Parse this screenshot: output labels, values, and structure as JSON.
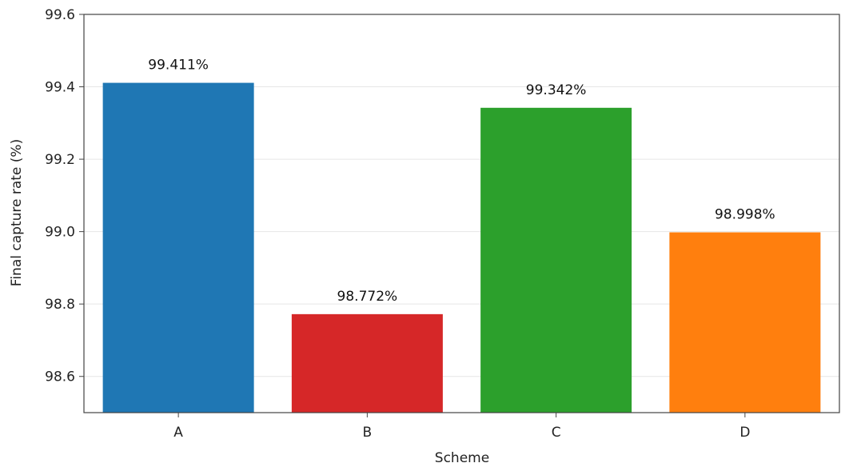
{
  "chart_data": {
    "type": "bar",
    "title": "",
    "xlabel": "Scheme",
    "ylabel": "Final capture rate (%)",
    "categories": [
      "A",
      "B",
      "C",
      "D"
    ],
    "values": [
      99.411,
      98.772,
      99.342,
      98.998
    ],
    "data_labels": [
      "99.411%",
      "98.772%",
      "99.342%",
      "98.998%"
    ],
    "colors": [
      "#1f77b4",
      "#d62728",
      "#2ca02c",
      "#ff7f0e"
    ],
    "ylim": [
      98.5,
      99.6
    ],
    "yticks": [
      98.6,
      98.8,
      99.0,
      99.2,
      99.4,
      99.6
    ],
    "ytick_labels": [
      "98.6",
      "98.8",
      "99.0",
      "99.2",
      "99.4",
      "99.6"
    ],
    "grid": "horizontal",
    "legend": "none"
  }
}
